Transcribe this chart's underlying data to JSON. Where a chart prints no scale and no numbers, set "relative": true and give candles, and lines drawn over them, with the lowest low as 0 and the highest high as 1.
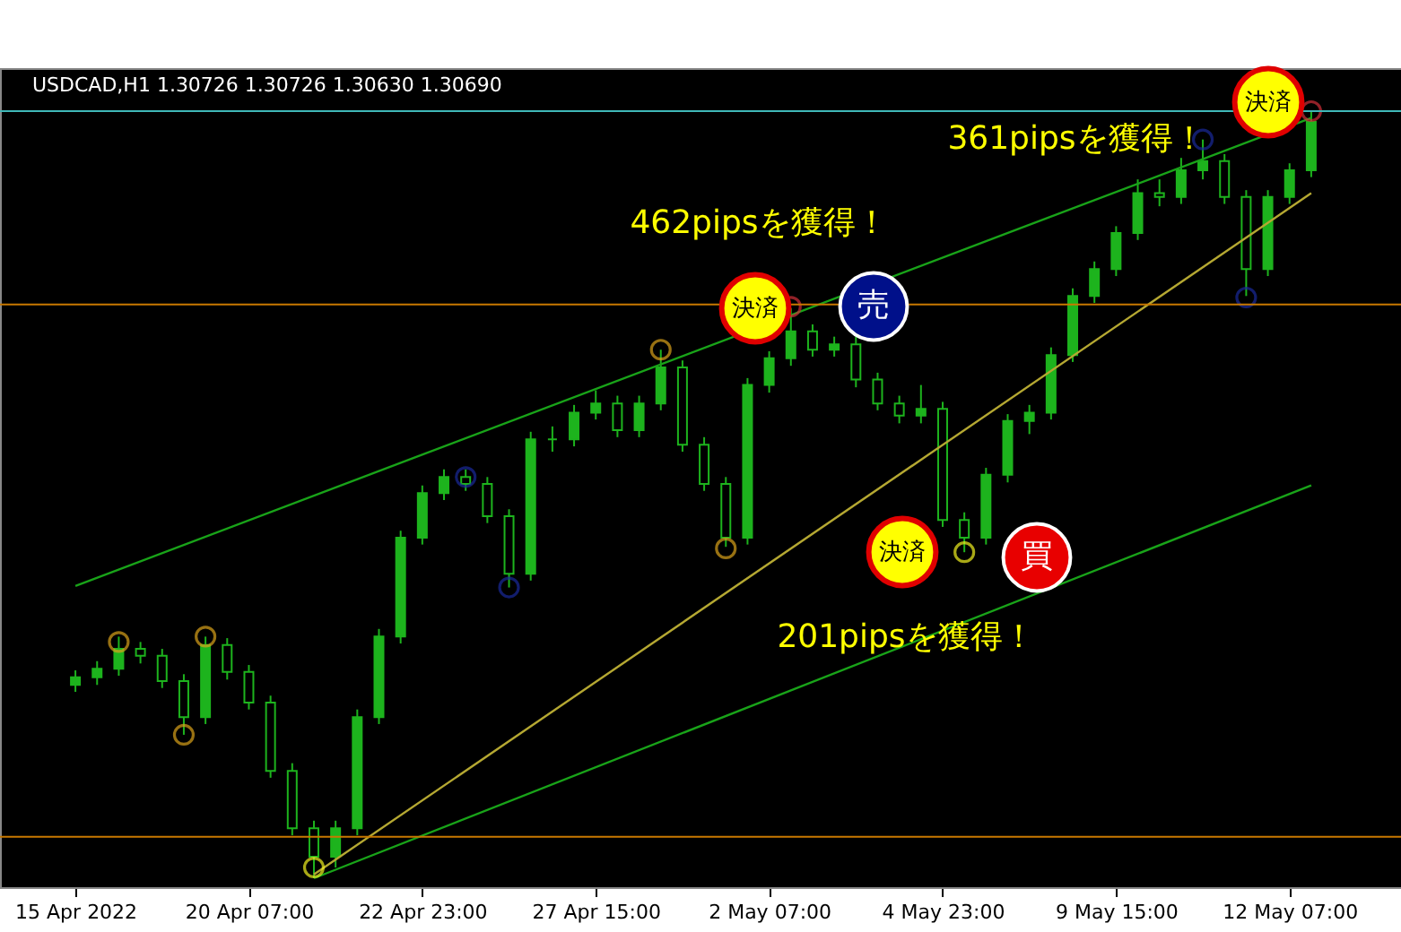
{
  "chart_data": {
    "type": "candlestick",
    "title": "USDCAD,H1  1.30726 1.30726 1.30630 1.30690",
    "relative": true,
    "color": "#1db31d",
    "categories": [
      "15 Apr 2022",
      null,
      null,
      null,
      null,
      null,
      null,
      null,
      "20 Apr 07:00",
      null,
      null,
      null,
      null,
      null,
      null,
      null,
      "22 Apr 23:00",
      null,
      null,
      null,
      null,
      null,
      null,
      null,
      "27 Apr 15:00",
      null,
      null,
      null,
      null,
      null,
      null,
      null,
      "2 May 07:00",
      null,
      null,
      null,
      null,
      null,
      null,
      null,
      "4 May 23:00",
      null,
      null,
      null,
      null,
      null,
      null,
      null,
      "9 May 15:00",
      null,
      null,
      null,
      null,
      null,
      null,
      null,
      "12 May 07:00",
      null
    ],
    "ohlc": [
      [
        0.252,
        0.271,
        0.243,
        0.262
      ],
      [
        0.262,
        0.283,
        0.252,
        0.273
      ],
      [
        0.273,
        0.315,
        0.264,
        0.299
      ],
      [
        0.299,
        0.308,
        0.28,
        0.29
      ],
      [
        0.29,
        0.299,
        0.248,
        0.257
      ],
      [
        0.257,
        0.266,
        0.187,
        0.21
      ],
      [
        0.21,
        0.315,
        0.201,
        0.304
      ],
      [
        0.304,
        0.313,
        0.259,
        0.269
      ],
      [
        0.269,
        0.278,
        0.22,
        0.229
      ],
      [
        0.229,
        0.238,
        0.131,
        0.14
      ],
      [
        0.14,
        0.15,
        0.056,
        0.065
      ],
      [
        0.065,
        0.075,
        0,
        0.028
      ],
      [
        0.028,
        0.075,
        0.014,
        0.065
      ],
      [
        0.065,
        0.22,
        0.056,
        0.21
      ],
      [
        0.21,
        0.325,
        0.201,
        0.315
      ],
      [
        0.315,
        0.453,
        0.306,
        0.444
      ],
      [
        0.444,
        0.512,
        0.435,
        0.502
      ],
      [
        0.502,
        0.533,
        0.493,
        0.523
      ],
      [
        0.523,
        0.533,
        0.505,
        0.514
      ],
      [
        0.514,
        0.523,
        0.463,
        0.472
      ],
      [
        0.472,
        0.481,
        0.379,
        0.397
      ],
      [
        0.397,
        0.582,
        0.388,
        0.572
      ],
      [
        0.572,
        0.589,
        0.556,
        0.572
      ],
      [
        0.572,
        0.617,
        0.563,
        0.607
      ],
      [
        0.607,
        0.636,
        0.598,
        0.619
      ],
      [
        0.619,
        0.629,
        0.575,
        0.584
      ],
      [
        0.584,
        0.629,
        0.575,
        0.619
      ],
      [
        0.619,
        0.689,
        0.61,
        0.666
      ],
      [
        0.666,
        0.675,
        0.556,
        0.565
      ],
      [
        0.565,
        0.575,
        0.505,
        0.514
      ],
      [
        0.514,
        0.523,
        0.432,
        0.444
      ],
      [
        0.444,
        0.652,
        0.435,
        0.643
      ],
      [
        0.643,
        0.687,
        0.633,
        0.678
      ],
      [
        0.678,
        0.743,
        0.668,
        0.713
      ],
      [
        0.713,
        0.722,
        0.68,
        0.689
      ],
      [
        0.689,
        0.706,
        0.68,
        0.696
      ],
      [
        0.696,
        0.706,
        0.64,
        0.65
      ],
      [
        0.65,
        0.659,
        0.61,
        0.619
      ],
      [
        0.619,
        0.629,
        0.593,
        0.603
      ],
      [
        0.603,
        0.643,
        0.593,
        0.612
      ],
      [
        0.612,
        0.621,
        0.458,
        0.467
      ],
      [
        0.467,
        0.477,
        0.425,
        0.444
      ],
      [
        0.444,
        0.535,
        0.435,
        0.526
      ],
      [
        0.526,
        0.605,
        0.516,
        0.596
      ],
      [
        0.596,
        0.617,
        0.579,
        0.607
      ],
      [
        0.607,
        0.692,
        0.598,
        0.682
      ],
      [
        0.682,
        0.769,
        0.673,
        0.759
      ],
      [
        0.759,
        0.804,
        0.75,
        0.794
      ],
      [
        0.794,
        0.85,
        0.785,
        0.841
      ],
      [
        0.841,
        0.911,
        0.832,
        0.893
      ],
      [
        0.893,
        0.911,
        0.876,
        0.888
      ],
      [
        0.888,
        0.939,
        0.879,
        0.923
      ],
      [
        0.923,
        0.963,
        0.911,
        0.935
      ],
      [
        0.935,
        0.944,
        0.879,
        0.888
      ],
      [
        0.888,
        0.897,
        0.759,
        0.794
      ],
      [
        0.794,
        0.897,
        0.785,
        0.888
      ],
      [
        0.888,
        0.932,
        0.879,
        0.923
      ],
      [
        0.923,
        1,
        0.914,
        0.986
      ]
    ],
    "series": [
      {
        "type": "line",
        "color": "#19a319",
        "values": [
          0.381,
          null,
          null,
          null,
          null,
          null,
          null,
          null,
          null,
          null,
          null,
          null,
          null,
          null,
          null,
          null,
          null,
          null,
          null,
          null,
          null,
          null,
          null,
          null,
          null,
          null,
          null,
          null,
          null,
          null,
          null,
          null,
          null,
          null,
          null,
          null,
          null,
          null,
          null,
          null,
          null,
          null,
          null,
          null,
          null,
          null,
          null,
          null,
          null,
          null,
          null,
          null,
          null,
          null,
          null,
          null,
          null,
          0.991
        ]
      },
      {
        "type": "line",
        "color": "#b5a832",
        "values": [
          null,
          null,
          null,
          null,
          null,
          null,
          null,
          null,
          null,
          null,
          null,
          0.005,
          null,
          null,
          null,
          null,
          null,
          null,
          null,
          null,
          null,
          null,
          null,
          null,
          null,
          null,
          null,
          null,
          null,
          null,
          null,
          null,
          null,
          null,
          null,
          null,
          null,
          null,
          null,
          null,
          null,
          null,
          null,
          null,
          null,
          null,
          null,
          null,
          null,
          null,
          null,
          null,
          null,
          null,
          null,
          null,
          null,
          0.893
        ]
      },
      {
        "type": "line",
        "color": "#19a319",
        "values": [
          null,
          null,
          null,
          null,
          null,
          null,
          null,
          null,
          null,
          null,
          null,
          0,
          null,
          null,
          null,
          null,
          null,
          null,
          null,
          null,
          null,
          null,
          null,
          null,
          null,
          null,
          null,
          null,
          null,
          null,
          null,
          null,
          null,
          null,
          null,
          null,
          null,
          null,
          null,
          null,
          null,
          null,
          null,
          null,
          null,
          null,
          null,
          null,
          null,
          null,
          null,
          null,
          null,
          null,
          null,
          null,
          null,
          0.512
        ]
      },
      {
        "type": "scatter",
        "marker": "circle",
        "color": "#d9a21b",
        "values": [
          null,
          null,
          0.308,
          null,
          null,
          0.187,
          0.315,
          null,
          null,
          null,
          null,
          null,
          null,
          null,
          null,
          null,
          null,
          null,
          null,
          null,
          null,
          null,
          null,
          null,
          null,
          null,
          null,
          0.689,
          null,
          null,
          0.43,
          null,
          null,
          null,
          null,
          null,
          null,
          null,
          null,
          null,
          null,
          null,
          null,
          null,
          null,
          null,
          null,
          null,
          null,
          null,
          null,
          null,
          null,
          null,
          null,
          null,
          null,
          null
        ]
      },
      {
        "type": "scatter",
        "marker": "circle",
        "color": "#f0f020",
        "values": [
          null,
          null,
          null,
          null,
          null,
          null,
          null,
          null,
          null,
          null,
          null,
          0.014,
          null,
          null,
          null,
          null,
          null,
          null,
          null,
          null,
          null,
          null,
          null,
          null,
          null,
          null,
          null,
          null,
          null,
          null,
          null,
          null,
          null,
          null,
          null,
          null,
          null,
          null,
          null,
          null,
          null,
          0.425,
          null,
          null,
          null,
          null,
          null,
          null,
          null,
          null,
          null,
          null,
          null,
          null,
          null,
          null,
          null,
          null
        ]
      },
      {
        "type": "scatter",
        "marker": "circle",
        "color": "#d0303a",
        "values": [
          null,
          null,
          null,
          null,
          null,
          null,
          null,
          null,
          null,
          null,
          null,
          null,
          null,
          null,
          null,
          null,
          null,
          null,
          null,
          null,
          null,
          null,
          null,
          null,
          null,
          null,
          null,
          null,
          null,
          null,
          null,
          null,
          null,
          0.745,
          null,
          null,
          null,
          null,
          null,
          null,
          null,
          null,
          null,
          null,
          null,
          null,
          null,
          null,
          null,
          null,
          null,
          null,
          null,
          null,
          null,
          null,
          null,
          1
        ]
      },
      {
        "type": "scatter",
        "marker": "circle",
        "color": "#1a2a9a",
        "values": [
          null,
          null,
          null,
          null,
          null,
          null,
          null,
          null,
          null,
          null,
          null,
          null,
          null,
          null,
          null,
          null,
          null,
          null,
          0.523,
          null,
          0.379,
          null,
          null,
          null,
          null,
          null,
          null,
          null,
          null,
          null,
          null,
          null,
          null,
          null,
          null,
          null,
          null,
          null,
          null,
          null,
          null,
          null,
          null,
          null,
          null,
          null,
          null,
          null,
          null,
          null,
          null,
          null,
          0.963,
          null,
          0.757,
          null,
          null,
          null
        ]
      }
    ],
    "ref_lines": [
      {
        "axis": "y",
        "value": 1,
        "color": "#3fb8b8"
      },
      {
        "axis": "y",
        "value": 0.748,
        "color": "#c87800"
      },
      {
        "axis": "y",
        "value": 0.054,
        "color": "#c87800"
      }
    ],
    "annotations": [
      "462pipsを獲得！",
      "361pipsを獲得！",
      "201pipsを獲得！",
      "決済",
      "決済",
      "決済",
      "売",
      "買"
    ]
  }
}
